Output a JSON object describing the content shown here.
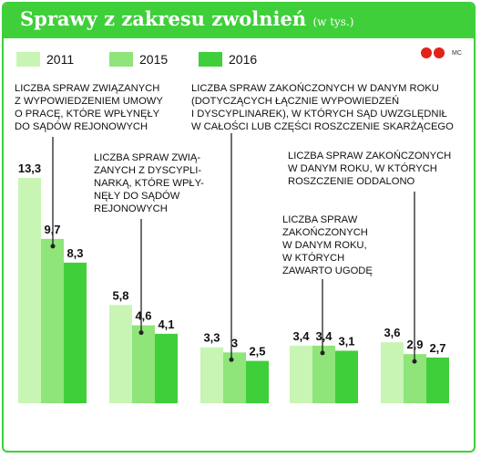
{
  "header": {
    "title": "Sprawy z zakresu zwolnień",
    "subtitle": "(w tys.)"
  },
  "logo": {
    "text": "MC"
  },
  "colors": {
    "header": "#3fcf3a",
    "series_2011": "#c8f5b4",
    "series_2015": "#8fe47a",
    "series_2016": "#3fcf3a"
  },
  "chart_data": {
    "type": "bar",
    "title": "Sprawy z zakresu zwolnień",
    "subtitle": "(w tys.)",
    "legend_position": "top-left",
    "categories": [
      "LICZBA SPRAW ZWIĄZANYCH Z WYPOWIEDZENIEM UMOWY O PRACĘ, KTÓRE WPŁYNĘŁY DO SĄDÓW REJONOWYCH",
      "LICZBA SPRAW ZWIĄZANYCH Z DYSCYPLINARKĄ, KTÓRE WPŁYNĘŁY DO SĄDÓW REJONOWYCH",
      "LICZBA SPRAW ZAKOŃCZONYCH W DANYM ROKU (DOTYCZĄCYCH ŁĄCZNIE WYPOWIEDZEŃ I DYSCYPLINAREK), W KTÓRYCH SĄD UWZGLĘDNIŁ W CAŁOŚCI LUB CZĘŚCI ROSZCZENIE SKARŻĄCEGO",
      "LICZBA SPRAW ZAKOŃCZONYCH W DANYM ROKU, W KTÓRYCH ZAWARTO UGODĘ",
      "LICZBA SPRAW ZAKOŃCZONYCH W DANYM ROKU, W KTÓRYCH ROSZCZENIE ODDALONO"
    ],
    "series": [
      {
        "name": "2011",
        "values": [
          13.3,
          5.8,
          3.3,
          3.4,
          3.6
        ],
        "labels": [
          "13,3",
          "5,8",
          "3,3",
          "3,4",
          "3,6"
        ]
      },
      {
        "name": "2015",
        "values": [
          9.7,
          4.6,
          3.0,
          3.4,
          2.9
        ],
        "labels": [
          "9,7",
          "4,6",
          "3",
          "3,4",
          "2,9"
        ]
      },
      {
        "name": "2016",
        "values": [
          8.3,
          4.1,
          2.5,
          3.1,
          2.7
        ],
        "labels": [
          "8,3",
          "4,1",
          "2,5",
          "3,1",
          "2,7"
        ]
      }
    ],
    "ylim": [
      0,
      13.3
    ],
    "grid": false
  },
  "annotations": [
    {
      "lines": [
        "LICZBA SPRAW ZWIĄZANYCH",
        "Z WYPOWIEDZENIEM UMOWY",
        "O PRACĘ, KTÓRE WPŁYNĘŁY",
        "DO SĄDÓW REJONOWYCH"
      ]
    },
    {
      "lines": [
        "LICZBA SPRAW ZWIĄ-",
        "ZANYCH Z DYSCYPLI-",
        "NARKĄ, KTÓRE WPŁY-",
        "NĘŁY DO SĄDÓW",
        "REJONOWYCH"
      ]
    },
    {
      "lines": [
        "LICZBA SPRAW ZAKOŃCZONYCH W DANYM ROKU",
        "(DOTYCZĄCYCH ŁĄCZNIE WYPOWIEDZEŃ",
        "I DYSCYPLINAREK), W KTÓRYCH SĄD UWZGLĘDNIŁ",
        "W CAŁOŚCI LUB CZĘŚCI ROSZCZENIE SKARŻĄCEGO"
      ]
    },
    {
      "lines": [
        "LICZBA SPRAW",
        "ZAKOŃCZONYCH",
        "W DANYM ROKU,",
        "W KTÓRYCH",
        "ZAWARTO UGODĘ"
      ]
    },
    {
      "lines": [
        "LICZBA SPRAW ZAKOŃCZONYCH",
        "W DANYM ROKU, W KTÓRYCH",
        "ROSZCZENIE ODDALONO"
      ]
    }
  ]
}
